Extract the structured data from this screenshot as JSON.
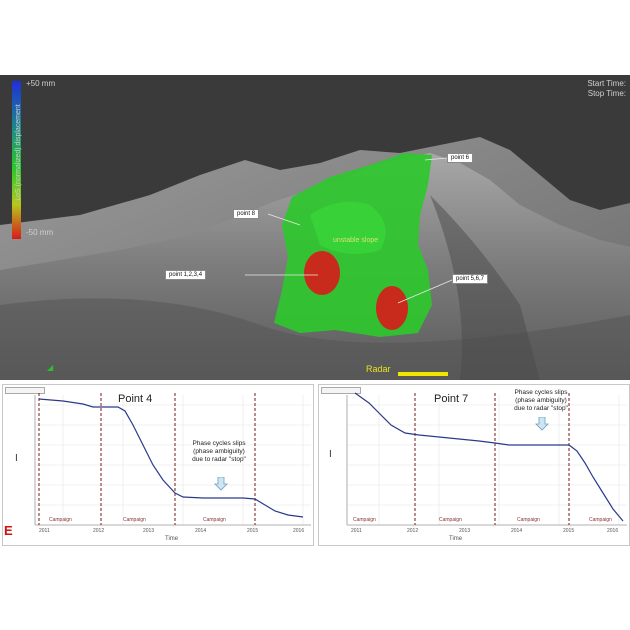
{
  "scene": {
    "colorbar": {
      "top_value": "+50 mm",
      "bottom_value": "-50 mm",
      "title": "LoS (normalized) displacement"
    },
    "time_info": {
      "start": "Start Time:",
      "stop": "Stop Time:"
    },
    "points": [
      {
        "label": "point 6"
      },
      {
        "label": "point 8"
      },
      {
        "label": "point 1,2,3,4"
      },
      {
        "label": "point 5,6,7"
      }
    ],
    "slope_name": "unstable slope",
    "radar_label": "Radar",
    "colors": {
      "stable": "#2ec82e",
      "moving": "#d81a1a",
      "terrain": "#8c8c8c",
      "sky": "#3a3a3a"
    }
  },
  "panels": [
    {
      "title": "Point 4",
      "note": [
        "Phase cycles slips",
        "(phase ambiguity)",
        "due to radar \"stop\""
      ],
      "y_axis_label": "I",
      "x_axis_label": "Time",
      "segment_labels": [
        "Campaign",
        "Campaign",
        "Campaign"
      ],
      "x_ticks": [
        "2011",
        "2012",
        "2013",
        "2014",
        "2015",
        "2016"
      ],
      "line_color": "#2a3a8a",
      "marker_color": "#7a1a1a"
    },
    {
      "title": "Point 7",
      "note": [
        "Phase cycles slips",
        "(phase ambiguity)",
        "due to radar \"stop\""
      ],
      "y_axis_label": "I",
      "x_axis_label": "Time",
      "segment_labels": [
        "Campaign",
        "Campaign",
        "Campaign",
        "Campaign"
      ],
      "x_ticks": [
        "2011",
        "2012",
        "2013",
        "2014",
        "2015",
        "2016"
      ],
      "line_color": "#2a3a8a",
      "marker_color": "#7a1a1a"
    }
  ],
  "corner_letter": "E"
}
